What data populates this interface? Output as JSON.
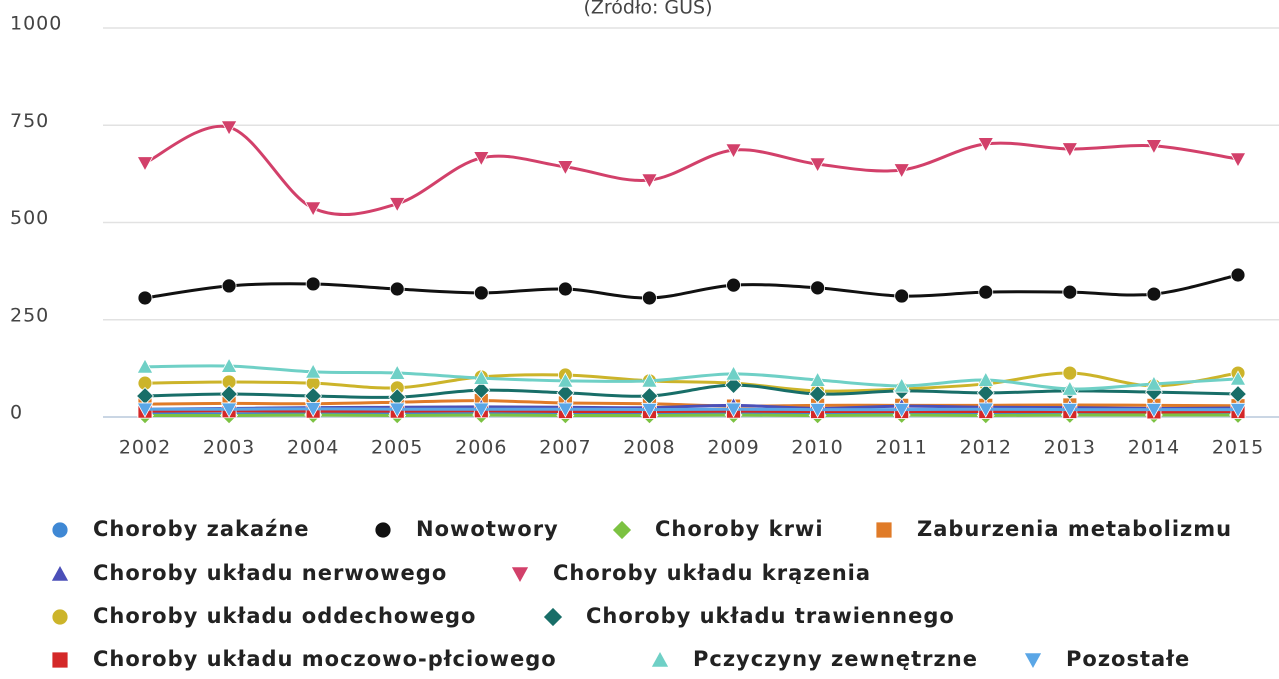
{
  "chart_data": {
    "type": "line",
    "subtitle": "(Źródło: GUS)",
    "categories": [
      "2002",
      "2003",
      "2004",
      "2005",
      "2006",
      "2007",
      "2008",
      "2009",
      "2010",
      "2011",
      "2012",
      "2013",
      "2014",
      "2015"
    ],
    "ylim": [
      0,
      1000
    ],
    "yticks": [
      0,
      250,
      500,
      750,
      1000
    ],
    "grid": true,
    "series": [
      {
        "name": "Choroby zakaźne",
        "color": "#3f88d4",
        "marker": "circle",
        "values": [
          8,
          8,
          9,
          8,
          9,
          8,
          7,
          8,
          9,
          9,
          8,
          8,
          9,
          9
        ]
      },
      {
        "name": "Nowotwory",
        "color": "#111111",
        "marker": "circle",
        "values": [
          306,
          337,
          342,
          329,
          319,
          329,
          306,
          339,
          332,
          311,
          321,
          321,
          316,
          365
        ]
      },
      {
        "name": "Choroby krwi",
        "color": "#7cc242",
        "marker": "diamond",
        "values": [
          4,
          4,
          5,
          4,
          5,
          4,
          4,
          5,
          4,
          5,
          4,
          5,
          5,
          5
        ]
      },
      {
        "name": "Zaburzenia metabolizmu",
        "color": "#e07b28",
        "marker": "square",
        "values": [
          33,
          35,
          34,
          38,
          42,
          36,
          34,
          28,
          30,
          30,
          30,
          31,
          30,
          29
        ]
      },
      {
        "name": "Choroby układu nerwowego",
        "color": "#4b4fb8",
        "marker": "triangle",
        "values": [
          20,
          22,
          24,
          25,
          26,
          25,
          24,
          30,
          22,
          28,
          25,
          24,
          22,
          23
        ]
      },
      {
        "name": "Choroby układu krązenia",
        "color": "#d2406a",
        "marker": "triangle-down",
        "values": [
          653,
          745,
          537,
          548,
          666,
          643,
          609,
          686,
          650,
          635,
          702,
          689,
          697,
          663
        ]
      },
      {
        "name": "Choroby układu oddechowego",
        "color": "#ccb42a",
        "marker": "circle",
        "values": [
          87,
          90,
          87,
          75,
          103,
          108,
          93,
          87,
          67,
          72,
          85,
          113,
          80,
          113
        ]
      },
      {
        "name": "Choroby układu trawiennego",
        "color": "#186e68",
        "marker": "diamond",
        "values": [
          54,
          59,
          54,
          51,
          69,
          62,
          54,
          82,
          59,
          67,
          62,
          67,
          64,
          59
        ]
      },
      {
        "name": "Choroby układu moczowo-płciowego",
        "color": "#d42828",
        "marker": "square",
        "values": [
          15,
          16,
          15,
          15,
          16,
          14,
          14,
          15,
          14,
          14,
          14,
          14,
          13,
          14
        ]
      },
      {
        "name": "Pczyczyny zewnętrzne",
        "color": "#6fd0c6",
        "marker": "triangle",
        "values": [
          129,
          131,
          116,
          113,
          100,
          93,
          93,
          111,
          95,
          80,
          95,
          72,
          85,
          98
        ]
      },
      {
        "name": "Pozostałe",
        "color": "#5aa6e6",
        "marker": "triangle-down",
        "values": [
          20,
          20,
          21,
          20,
          20,
          20,
          19,
          20,
          19,
          19,
          20,
          19,
          19,
          19
        ]
      }
    ]
  }
}
